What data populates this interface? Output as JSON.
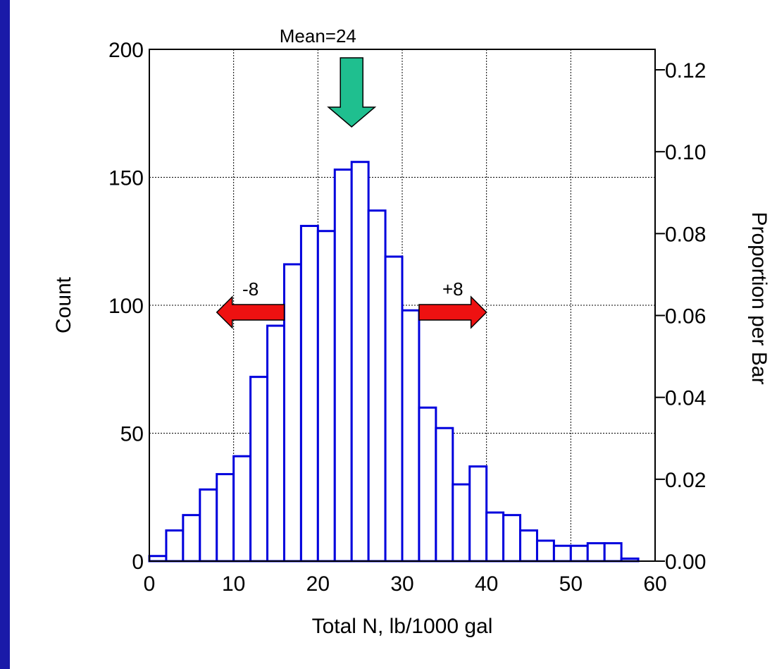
{
  "chart_data": {
    "type": "bar",
    "title": "",
    "xlabel": "Total N, lb/1000 gal",
    "ylabel": "Count",
    "ylabel_right": "Proportion per Bar",
    "xlim": [
      0,
      60
    ],
    "ylim": [
      0,
      200
    ],
    "ylim_right": [
      0,
      0.125
    ],
    "grid": true,
    "bin_width": 2,
    "bin_starts": [
      0,
      2,
      4,
      6,
      8,
      10,
      12,
      14,
      16,
      18,
      20,
      22,
      24,
      26,
      28,
      30,
      32,
      34,
      36,
      38,
      40,
      42,
      44,
      46,
      48,
      50,
      52,
      54,
      56,
      58
    ],
    "values": [
      2,
      12,
      18,
      28,
      34,
      41,
      72,
      92,
      116,
      131,
      129,
      153,
      156,
      137,
      119,
      98,
      60,
      52,
      30,
      37,
      19,
      18,
      12,
      8,
      6,
      6,
      7,
      7,
      1,
      0
    ],
    "x_ticks": [
      "0",
      "10",
      "20",
      "30",
      "40",
      "50",
      "60"
    ],
    "y_ticks": [
      "0",
      "50",
      "100",
      "150",
      "200"
    ],
    "y_ticks_right": [
      "0.00",
      "0.02",
      "0.04",
      "0.06",
      "0.08",
      "0.10",
      "0.12"
    ],
    "colors": {
      "bar_stroke": "#0000dd",
      "bar_fill": "#ffffff",
      "mean_arrow": "#1fbf8f",
      "spread_arrow": "#ee1111",
      "frame": "#1a1aa8"
    },
    "annotations": {
      "mean": {
        "label": "Mean=24",
        "x": 24
      },
      "minus": {
        "label": "-8",
        "from": 16,
        "to": 8,
        "y": 100
      },
      "plus": {
        "label": "+8",
        "from": 32,
        "to": 40,
        "y": 100
      }
    }
  }
}
